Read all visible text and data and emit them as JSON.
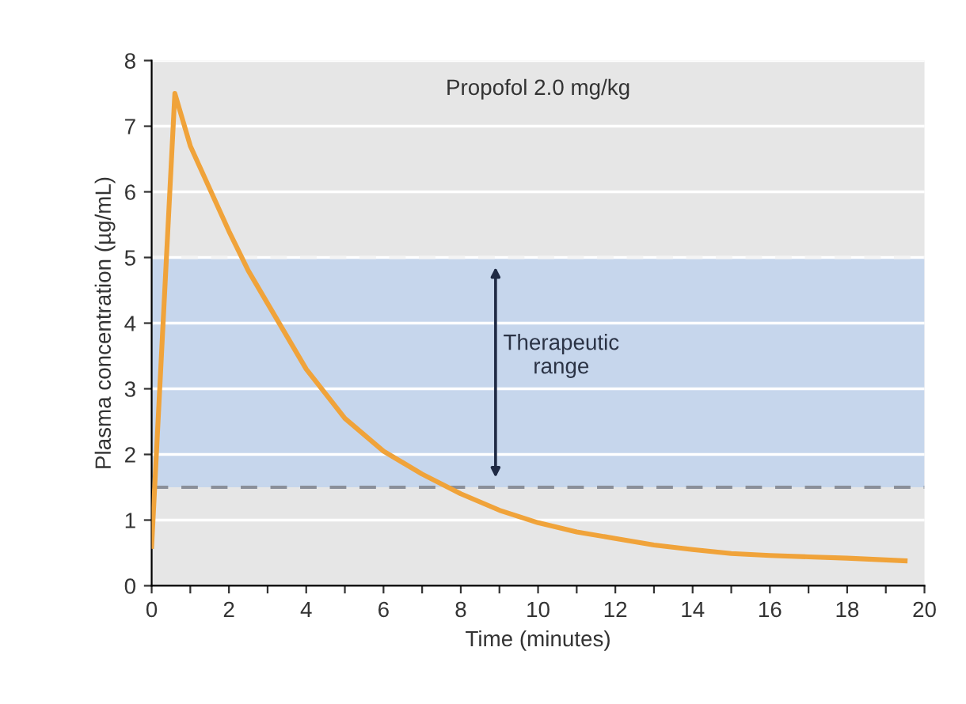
{
  "chart_data": {
    "type": "line",
    "title": "Propofol 2.0 mg/kg",
    "xlabel": "Time (minutes)",
    "ylabel": "Plasma concentration (µg/mL)",
    "x": [
      0,
      0.6,
      1,
      2,
      2.5,
      3,
      4,
      5,
      6,
      7,
      8,
      9,
      10,
      11,
      12,
      13,
      14,
      15,
      16,
      17,
      18,
      19.5
    ],
    "series": [
      {
        "color": "#f0a33a",
        "values": [
          0.6,
          7.5,
          6.7,
          5.4,
          4.8,
          4.3,
          3.3,
          2.55,
          2.05,
          1.7,
          1.4,
          1.15,
          0.96,
          0.82,
          0.72,
          0.62,
          0.55,
          0.49,
          0.46,
          0.44,
          0.42,
          0.38
        ]
      }
    ],
    "xlim": [
      0,
      20
    ],
    "ylim": [
      0,
      8
    ],
    "xticks": [
      0,
      {
        "value": 1,
        "label": null
      },
      2,
      {
        "value": 3,
        "label": null
      },
      4,
      {
        "value": 5,
        "label": null
      },
      6,
      {
        "value": 7,
        "label": null
      },
      8,
      {
        "value": 9,
        "label": null
      },
      10,
      {
        "value": 11,
        "label": null
      },
      12,
      {
        "value": 13,
        "label": null
      },
      14,
      {
        "value": 15,
        "label": null
      },
      16,
      {
        "value": 17,
        "label": null
      },
      18,
      {
        "value": 19,
        "label": null
      },
      20
    ],
    "yticks": [
      0,
      1,
      2,
      3,
      4,
      5,
      6,
      7,
      8
    ],
    "grid": "y",
    "line_style": "solid",
    "marker": "none",
    "bands": [
      {
        "axis": "y",
        "from": 1.5,
        "to": 5,
        "label": "Therapeutic range",
        "color": "#c6d6ec"
      }
    ],
    "ref_lines": [
      {
        "axis": "y",
        "value": 1.5,
        "color": "#8a8f99",
        "line_style": "dashed"
      },
      {
        "axis": "y",
        "value": 5,
        "color": "#f4f4f4",
        "line_style": "dashed"
      }
    ]
  }
}
